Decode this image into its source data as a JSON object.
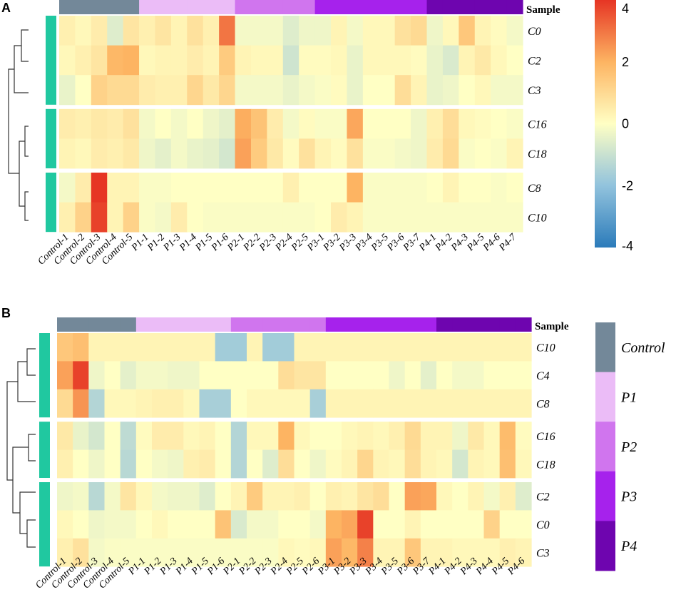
{
  "colors": {
    "row_annotation": "#20c8a0",
    "gap": "#ffffff",
    "dendrogram": "#333333",
    "group": {
      "Control": "#738899",
      "P1": "#ebbcf7",
      "P2": "#d075ee",
      "P3": "#a622ec",
      "P4": "#6e05af"
    },
    "scale_stops": [
      {
        "v": -4,
        "c": "#2b7bba"
      },
      {
        "v": -2,
        "c": "#92c3dd"
      },
      {
        "v": 0,
        "c": "#ffffc4"
      },
      {
        "v": 2,
        "c": "#fdb462"
      },
      {
        "v": 4,
        "c": "#e63524"
      }
    ]
  },
  "chart_data": [
    {
      "panel": "A",
      "type": "heatmap",
      "annotation_title": "Sample",
      "columns": [
        "Control-1",
        "Control-2",
        "Control-3",
        "Control-4",
        "Control-5",
        "P1-1",
        "P1-2",
        "P1-3",
        "P1-4",
        "P1-5",
        "P1-6",
        "P2-1",
        "P2-2",
        "P2-3",
        "P2-4",
        "P2-5",
        "P3-1",
        "P3-2",
        "P3-3",
        "P3-4",
        "P3-5",
        "P3-6",
        "P3-7",
        "P4-1",
        "P4-2",
        "P4-3",
        "P4-5",
        "P4-6",
        "P4-7"
      ],
      "column_groups": [
        "Control",
        "Control",
        "Control",
        "Control",
        "Control",
        "P1",
        "P1",
        "P1",
        "P1",
        "P1",
        "P1",
        "P2",
        "P2",
        "P2",
        "P2",
        "P2",
        "P3",
        "P3",
        "P3",
        "P3",
        "P3",
        "P3",
        "P3",
        "P4",
        "P4",
        "P4",
        "P4",
        "P4",
        "P4"
      ],
      "rows": [
        "C0",
        "C2",
        "C3",
        "C16",
        "C18",
        "C8",
        "C10"
      ],
      "row_gaps_after": [
        2,
        4
      ],
      "values": [
        [
          0.4,
          0.2,
          0.5,
          -0.6,
          0.7,
          0.4,
          0.7,
          0.3,
          0.8,
          0.4,
          3.0,
          -0.2,
          -0.2,
          -0.2,
          -0.6,
          -0.3,
          -0.3,
          0.3,
          -0.2,
          0.2,
          0.2,
          0.8,
          1.0,
          -0.3,
          0.2,
          1.5,
          0.3,
          0.1,
          -0.2
        ],
        [
          0.2,
          0.4,
          0.7,
          1.9,
          2.0,
          0.2,
          0.3,
          0.3,
          0.5,
          0.3,
          1.4,
          0.3,
          0.2,
          0.2,
          -0.9,
          0.1,
          0.1,
          0.2,
          -0.4,
          0.2,
          0.2,
          0.2,
          0.1,
          -0.4,
          -0.7,
          0.3,
          0.6,
          0.2,
          0.0
        ],
        [
          -0.4,
          0.0,
          1.2,
          1.0,
          1.0,
          0.5,
          0.4,
          0.4,
          1.1,
          0.6,
          1.1,
          -0.2,
          -0.2,
          -0.2,
          -0.4,
          -0.2,
          -0.1,
          0.1,
          -0.4,
          0.0,
          0.0,
          0.9,
          0.3,
          -0.4,
          -0.3,
          0.0,
          0.2,
          -0.2,
          -0.2
        ],
        [
          0.5,
          0.4,
          0.6,
          0.5,
          0.8,
          -0.2,
          0.0,
          -0.2,
          0.0,
          -0.3,
          -0.5,
          2.1,
          1.6,
          0.5,
          -0.2,
          0.1,
          -0.1,
          -0.1,
          2.2,
          0.0,
          0.0,
          0.0,
          -0.3,
          0.4,
          0.9,
          0.2,
          0.1,
          0.0,
          -0.1
        ],
        [
          0.3,
          0.2,
          0.5,
          0.4,
          0.6,
          -0.3,
          -0.5,
          -0.2,
          -0.4,
          -0.5,
          -0.8,
          2.3,
          1.4,
          0.6,
          0.1,
          0.8,
          0.3,
          0.1,
          0.8,
          -0.1,
          -0.1,
          -0.2,
          -0.3,
          0.5,
          1.0,
          -0.1,
          0.0,
          -0.1,
          0.3
        ],
        [
          -0.2,
          0.5,
          4.0,
          0.3,
          0.3,
          -0.1,
          -0.1,
          0.0,
          0.0,
          0.0,
          0.0,
          0.0,
          0.0,
          0.0,
          0.4,
          0.0,
          0.0,
          0.0,
          2.0,
          -0.1,
          -0.1,
          -0.1,
          -0.1,
          0.0,
          0.3,
          0.0,
          0.0,
          -0.1,
          0.0
        ],
        [
          0.4,
          1.2,
          3.8,
          0.3,
          1.2,
          -0.1,
          -0.2,
          0.5,
          0.0,
          -0.1,
          -0.1,
          -0.1,
          -0.1,
          -0.1,
          -0.1,
          -0.1,
          0.0,
          0.5,
          0.3,
          -0.1,
          -0.1,
          -0.1,
          -0.1,
          -0.1,
          -0.1,
          -0.1,
          -0.1,
          -0.1,
          -0.1
        ]
      ]
    },
    {
      "panel": "B",
      "type": "heatmap",
      "annotation_title": "Sample",
      "columns": [
        "Control-1",
        "Control-2",
        "Control-3",
        "Control-4",
        "Control-5",
        "P1-1",
        "P1-2",
        "P1-3",
        "P1-4",
        "P1-5",
        "P1-6",
        "P2-1",
        "P2-2",
        "P2-3",
        "P2-4",
        "P2-5",
        "P2-6",
        "P3-1",
        "P3-2",
        "P3-3",
        "P3-4",
        "P3-5",
        "P3-6",
        "P3-7",
        "P4-1",
        "P4-2",
        "P4-3",
        "P4-4",
        "P4-5",
        "P4-6"
      ],
      "column_groups": [
        "Control",
        "Control",
        "Control",
        "Control",
        "Control",
        "P1",
        "P1",
        "P1",
        "P1",
        "P1",
        "P1",
        "P2",
        "P2",
        "P2",
        "P2",
        "P2",
        "P2",
        "P3",
        "P3",
        "P3",
        "P3",
        "P3",
        "P3",
        "P3",
        "P4",
        "P4",
        "P4",
        "P4",
        "P4",
        "P4"
      ],
      "rows": [
        "C10",
        "C4",
        "C8",
        "C16",
        "C18",
        "C2",
        "C0",
        "C3"
      ],
      "row_gaps_after": [
        2,
        4
      ],
      "values": [
        [
          1.5,
          1.7,
          0.3,
          0.3,
          0.3,
          0.3,
          0.3,
          0.3,
          0.3,
          0.3,
          -1.7,
          -1.7,
          0.3,
          -1.7,
          -1.7,
          0.3,
          0.3,
          0.3,
          0.3,
          0.3,
          0.3,
          0.3,
          0.3,
          0.3,
          0.3,
          0.3,
          0.3,
          0.3,
          0.3,
          0.3
        ],
        [
          2.3,
          3.8,
          -0.3,
          0.0,
          -0.5,
          -0.2,
          -0.2,
          -0.3,
          -0.3,
          0.0,
          0.0,
          0.0,
          0.0,
          0.0,
          0.9,
          0.7,
          0.7,
          0.0,
          0.0,
          0.0,
          0.0,
          -0.3,
          0.0,
          -0.5,
          0.0,
          -0.2,
          -0.2,
          0.0,
          0.0,
          0.0
        ],
        [
          1.0,
          2.5,
          -1.4,
          0.2,
          0.2,
          0.3,
          0.4,
          0.4,
          0.2,
          -1.6,
          -1.6,
          0.0,
          0.2,
          0.2,
          0.2,
          0.2,
          -1.6,
          0.3,
          0.3,
          0.3,
          0.3,
          0.3,
          0.3,
          0.3,
          0.3,
          0.3,
          0.3,
          0.3,
          0.3,
          0.3
        ],
        [
          0.6,
          -0.4,
          -0.8,
          0.0,
          -1.2,
          0.1,
          0.5,
          0.5,
          0.2,
          0.3,
          0.0,
          -1.4,
          0.2,
          0.2,
          2.0,
          0.2,
          0.0,
          0.0,
          0.2,
          0.3,
          0.2,
          0.4,
          1.0,
          0.3,
          0.3,
          -0.3,
          0.6,
          0.2,
          1.8,
          0.1
        ],
        [
          0.4,
          0.0,
          -0.3,
          0.0,
          -1.3,
          0.0,
          -0.2,
          -0.3,
          0.4,
          0.5,
          0.0,
          -1.4,
          0.0,
          -0.6,
          0.9,
          0.0,
          -0.3,
          0.1,
          0.3,
          1.1,
          0.3,
          0.2,
          0.9,
          0.3,
          0.2,
          -0.8,
          0.3,
          0.2,
          1.7,
          0.2
        ],
        [
          -0.3,
          -0.2,
          -1.3,
          -0.2,
          0.7,
          0.2,
          -0.2,
          -0.3,
          -0.3,
          -0.6,
          0.0,
          0.3,
          1.4,
          0.3,
          0.3,
          0.4,
          0.0,
          0.4,
          0.3,
          0.7,
          0.9,
          0.0,
          2.3,
          2.2,
          0.2,
          0.0,
          0.3,
          -0.2,
          0.4,
          -0.6
        ],
        [
          0.2,
          0.0,
          -0.3,
          -0.2,
          -0.2,
          0.0,
          0.2,
          0.0,
          0.0,
          0.0,
          1.6,
          -0.7,
          -0.2,
          -0.2,
          0.0,
          0.0,
          -0.2,
          2.0,
          2.2,
          3.8,
          0.0,
          0.0,
          0.3,
          0.0,
          0.0,
          0.0,
          0.0,
          1.2,
          0.0,
          0.0
        ],
        [
          0.4,
          0.8,
          -0.2,
          -0.1,
          -0.1,
          -0.1,
          -0.1,
          -0.1,
          -0.1,
          -0.1,
          -0.1,
          -0.1,
          -0.1,
          -0.1,
          0.2,
          0.1,
          0.2,
          2.3,
          1.9,
          2.8,
          0.3,
          0.3,
          1.5,
          0.3,
          0.3,
          0.2,
          0.2,
          0.2,
          0.4,
          0.3
        ]
      ]
    }
  ],
  "color_scale": {
    "min": -4,
    "max": 4,
    "ticks": [
      4,
      2,
      0,
      -2,
      -4
    ],
    "tick_labels": [
      "4",
      "2",
      "0",
      "-2",
      "-4"
    ]
  },
  "group_legend": [
    {
      "key": "Control",
      "label": "Control"
    },
    {
      "key": "P1",
      "label": "P1"
    },
    {
      "key": "P2",
      "label": "P2"
    },
    {
      "key": "P3",
      "label": "P3"
    },
    {
      "key": "P4",
      "label": "P4"
    }
  ]
}
